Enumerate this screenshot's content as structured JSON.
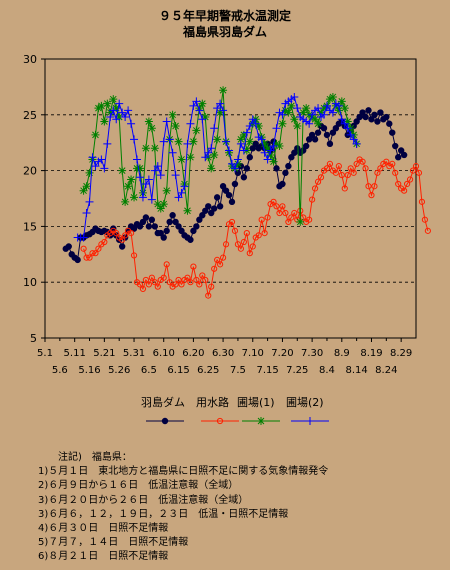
{
  "title_line1": "９５年早期警戒水温測定",
  "title_line2": "福島県羽島ダム",
  "chart_data": {
    "type": "line",
    "ylim": [
      5,
      30
    ],
    "yticks": [
      5,
      10,
      15,
      20,
      25,
      30
    ],
    "xlim": [
      "05-01",
      "09-03"
    ],
    "grid": "horizontal dashed",
    "xtick_labels_top": [
      "5.1",
      "5.11",
      "5.21",
      "5.31",
      "6.10",
      "6.20",
      "6.30",
      "7.10",
      "7.20",
      "7.30",
      "8.9",
      "8.19",
      "8.29"
    ],
    "xtick_labels_bottom": [
      "5.6",
      "5.16",
      "5.26",
      "6.5",
      "6.15",
      "6.25",
      "7.5",
      "7.15",
      "7.25",
      "8.4",
      "8.14",
      "8.24"
    ],
    "legend_position": "bottom",
    "series": [
      {
        "name": "羽島ダム",
        "color": "#000040",
        "marker": "filled-circle",
        "start_date": "05-08",
        "values": [
          13,
          13.2,
          12.5,
          12.2,
          12,
          14,
          14,
          14.2,
          14.3,
          14.5,
          14.8,
          14.6,
          14.5,
          14.6,
          14.5,
          14.2,
          14.8,
          14.2,
          13.8,
          13.2,
          14,
          14.6,
          15,
          14.8,
          15.2,
          15,
          15.4,
          15.8,
          15,
          15.6,
          15,
          14.4,
          14.4,
          14,
          14.6,
          15.4,
          16,
          15.4,
          15,
          14.6,
          14.2,
          14,
          13.8,
          14.6,
          15,
          15.6,
          16,
          16.4,
          16.8,
          16.2,
          16.6,
          17.6,
          16.8,
          18.6,
          18.2,
          17.8,
          17.2,
          18.8,
          19.8,
          20.4,
          19.4,
          20.2,
          21.2,
          22,
          22.4,
          22,
          22.2,
          22,
          22.4,
          21.8,
          22.6,
          20.2,
          18.6,
          18.8,
          19.8,
          20.4,
          21.2,
          21.6,
          22,
          21.6,
          21.8,
          22.2,
          22.8,
          23.2,
          22.8,
          23.4,
          24,
          23.8,
          23.2,
          22.4,
          23.4,
          23.8,
          24.2,
          24.4,
          24,
          23.2,
          23.6,
          24,
          24.4,
          24.8,
          25.2,
          24.8,
          25.4,
          24.6,
          25,
          24.4,
          25.2,
          24.6,
          24.8,
          24.2,
          23.4,
          22.2,
          21.2,
          21.8,
          21.4
        ]
      },
      {
        "name": "用水路",
        "color": "#ff2000",
        "marker": "open-circle",
        "start_date": "05-14",
        "values": [
          13,
          12.2,
          12.2,
          12.6,
          12.6,
          13,
          13.4,
          13.6,
          14.2,
          14.4,
          14.6,
          14.4,
          14,
          13.8,
          14.2,
          14.6,
          14.4,
          12.4,
          10,
          9.8,
          9.4,
          10.2,
          9.8,
          10.4,
          10,
          9.6,
          10.2,
          10.4,
          11.6,
          10,
          9.6,
          9.8,
          10.2,
          9.8,
          10.2,
          10.4,
          10,
          11.4,
          10.2,
          9.8,
          10.6,
          10.2,
          8.8,
          9.6,
          11.2,
          12,
          11.6,
          12.2,
          13.4,
          15.2,
          15.4,
          14.6,
          13.4,
          13,
          13.6,
          14.4,
          12.6,
          13.2,
          14,
          14.2,
          15.6,
          14.4,
          15.8,
          17,
          17.2,
          16.8,
          16.2,
          16.8,
          16.2,
          15.4,
          15.8,
          16.2,
          15.6,
          16.4,
          15.8,
          15.4,
          15.6,
          17.4,
          18.4,
          19,
          19.4,
          20,
          20.2,
          20.6,
          20,
          19.8,
          20.4,
          19.6,
          18.4,
          19.6,
          20.2,
          19.8,
          20.6,
          21,
          20.8,
          20.2,
          18.6,
          17.8,
          18.6,
          19.8,
          20.2,
          20.6,
          20.8,
          20.4,
          20.6,
          19.8,
          18.8,
          18.4,
          18.2,
          18.8,
          19.2,
          20,
          20.4,
          19.8,
          17.2,
          15.6,
          14.6
        ]
      },
      {
        "name": "圃場(1)",
        "color": "#008000",
        "marker": "asterisk",
        "start_date": "05-14",
        "values": [
          18.2,
          18.6,
          19.8,
          21,
          23.2,
          25.6,
          25.8,
          24.4,
          26,
          25.2,
          26.4,
          25.6,
          24.8,
          20,
          17.2,
          18.6,
          19.2,
          17.6,
          20.2,
          20.2,
          18,
          22,
          24.4,
          23.8,
          22,
          17,
          16.6,
          17,
          18.2,
          22.8,
          25,
          24,
          22.6,
          21,
          18.8,
          16.4,
          21.2,
          22.6,
          23.6,
          25.6,
          26,
          24.8,
          21.2,
          20.2,
          21.4,
          22.8,
          25.2,
          27.2,
          22.6,
          21.6,
          20.4,
          20.2,
          20.6,
          22.8,
          23.2,
          21.8,
          22.6,
          24.2,
          24.6,
          24,
          23,
          22.4,
          22,
          21.4,
          20.8,
          22.4,
          22.2,
          24.2,
          25.4,
          25.2,
          25.8,
          24.6,
          24,
          15.4,
          25.2,
          25.6,
          25,
          24.8,
          24.6,
          24.2,
          25.2,
          25.6,
          25.8,
          26.4,
          26.6,
          25.8,
          25.4,
          26.2,
          25.6,
          24.4,
          23.8,
          23.2,
          22.4
        ]
      },
      {
        "name": "圃場(2)",
        "color": "#0000ff",
        "marker": "plus",
        "start_date": "05-12",
        "values": [
          14,
          14,
          14,
          16.2,
          17.2,
          21.2,
          20.4,
          20.8,
          21,
          20.2,
          22.4,
          24.8,
          25.4,
          24.6,
          26,
          25.2,
          24.8,
          25.4,
          24.2,
          22.8,
          21,
          19.4,
          17.6,
          18.8,
          19.2,
          17.4,
          20,
          20.4,
          19.6,
          22.6,
          24.4,
          22.8,
          21.6,
          19.6,
          17.6,
          18,
          18.6,
          22.4,
          24.2,
          25.8,
          26.2,
          25.4,
          24.6,
          21.2,
          21.6,
          22,
          23.8,
          25.6,
          26,
          25.4,
          22.6,
          21.8,
          20.6,
          20.2,
          21,
          22.4,
          21.8,
          23.4,
          24,
          24.6,
          24.2,
          23,
          22.8,
          21.6,
          21,
          21.8,
          22.2,
          23.8,
          25.2,
          25,
          26,
          26.2,
          26.4,
          26.6,
          25.6,
          24.8,
          24.6,
          24.4,
          24.2,
          25,
          25.4,
          25.6,
          24.8,
          25,
          25.8,
          25.4,
          25.2,
          26,
          25.8,
          24.6,
          24.2,
          23.8,
          23.2,
          22.8,
          22.4
        ]
      }
    ]
  },
  "notes": {
    "title": "注記)　福島県：",
    "lines": [
      "1)５月１日　東北地方と福島県に日照不足に関する気象情報発令",
      "2)６月９日から１６日　低温注意報（全域）",
      "3)６月２０日から２６日　低温注意報（全域）",
      "3)６月６，１２，１９日，２３日　低温・日照不足情報",
      "4)６月３０日　日照不足情報",
      "5)７月７，１４日　日照不足情報",
      "6)８月２１日　日照不足情報"
    ]
  }
}
